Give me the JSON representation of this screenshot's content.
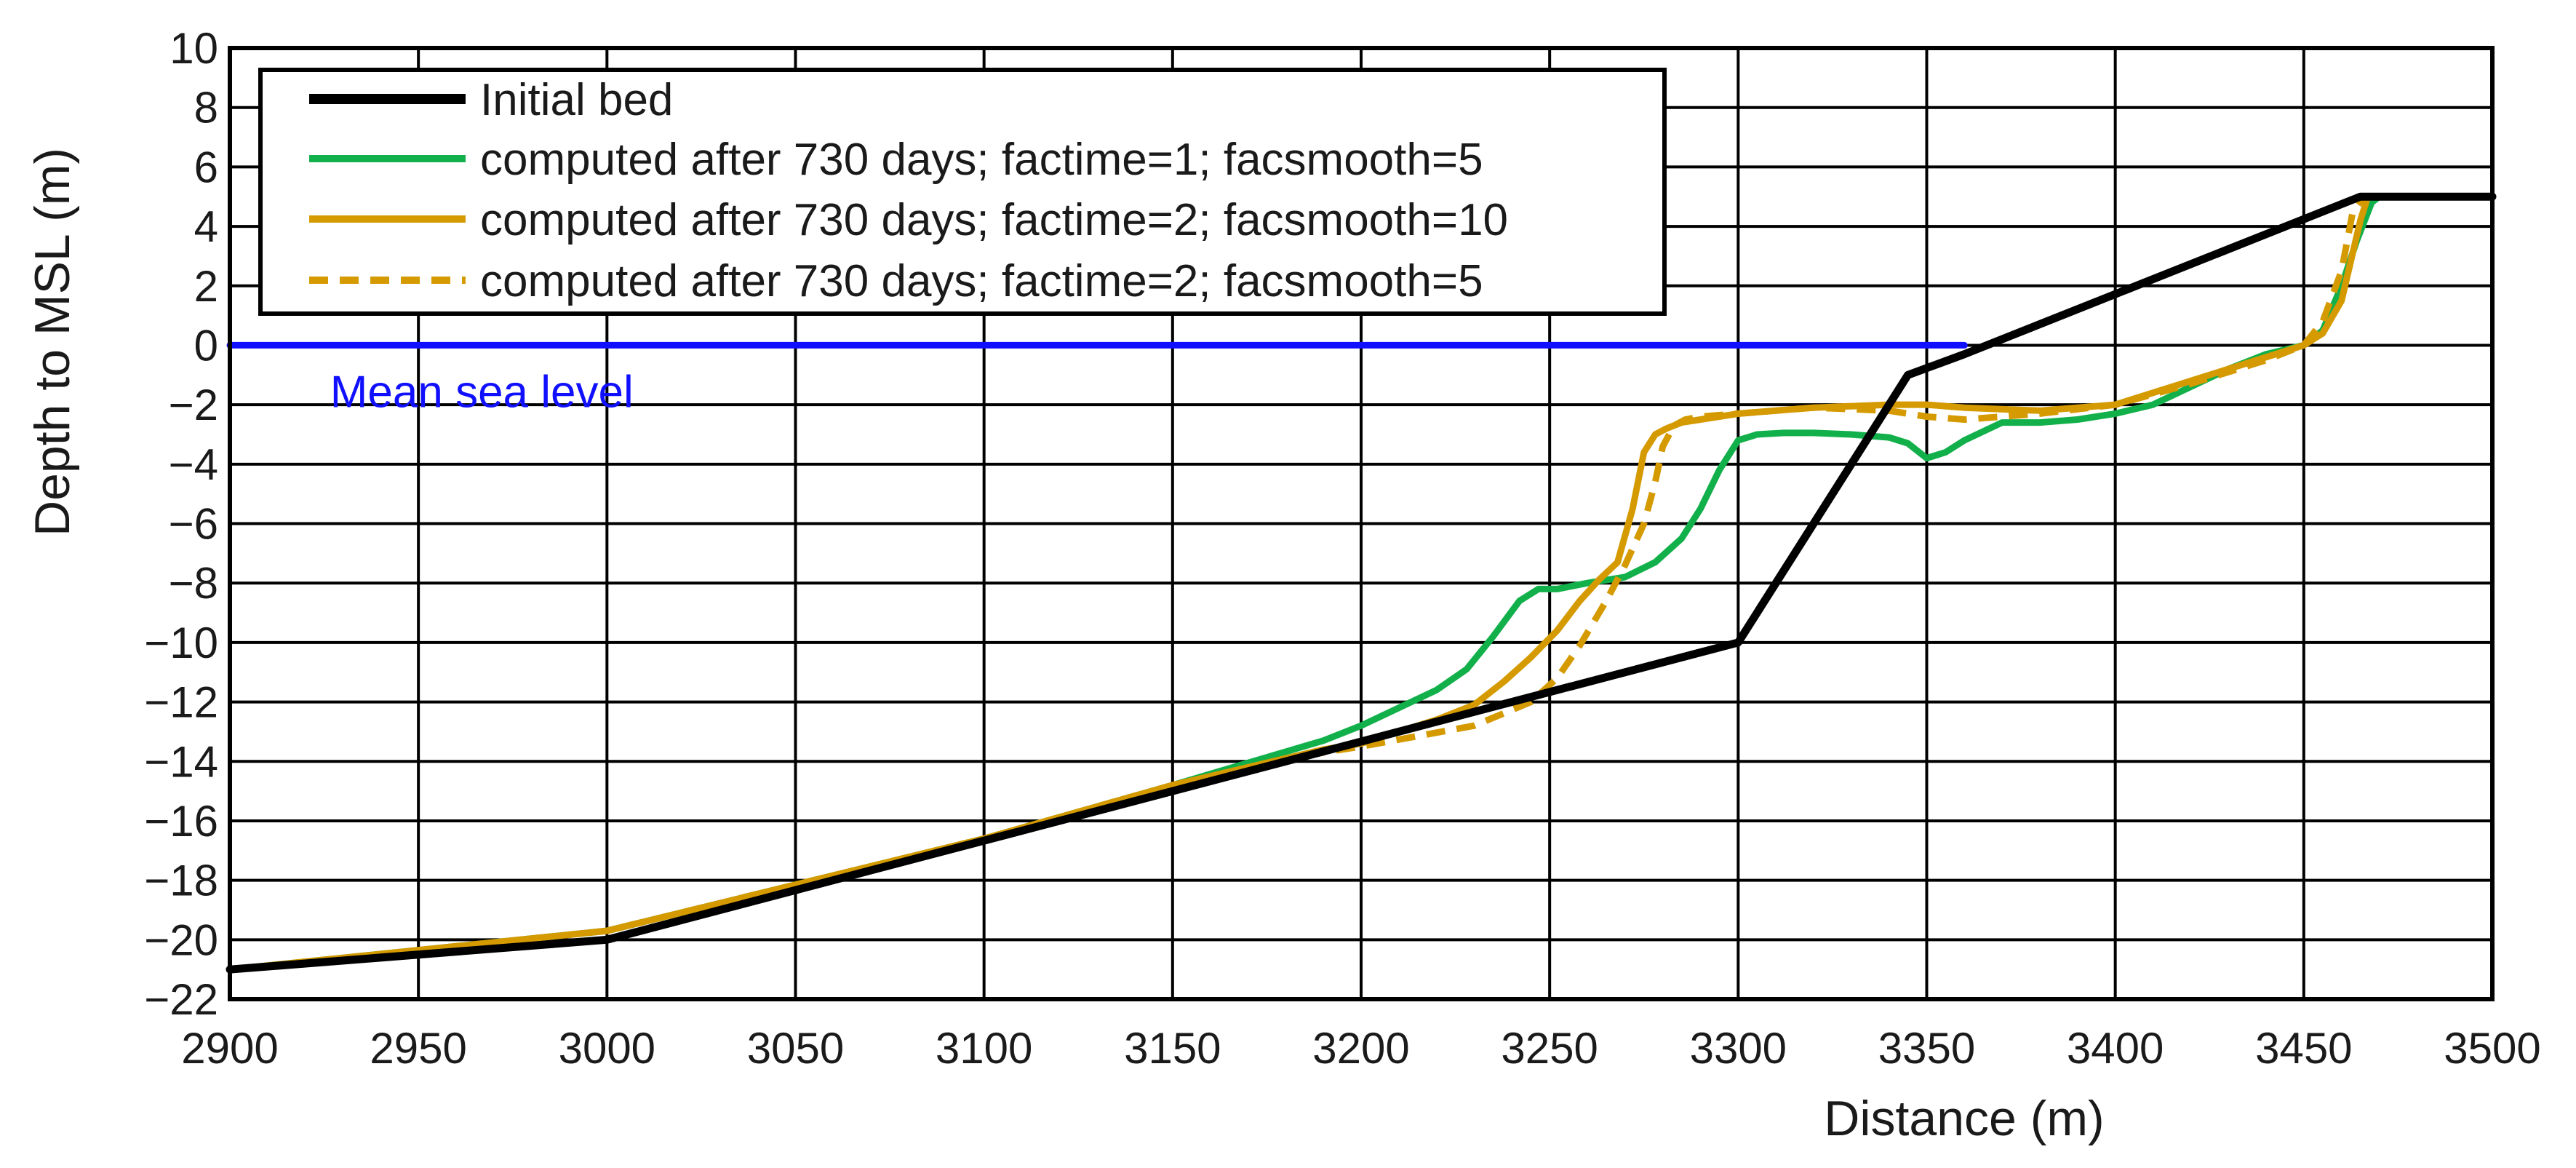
{
  "chart_data": {
    "type": "line",
    "title": "",
    "xlabel": "Distance (m)",
    "ylabel": "Depth to MSL (m)",
    "xlim": [
      2900,
      3500
    ],
    "ylim": [
      -22,
      10
    ],
    "x_ticks": [
      2900,
      2950,
      3000,
      3050,
      3100,
      3150,
      3200,
      3250,
      3300,
      3350,
      3400,
      3450,
      3500
    ],
    "x_tick_labels": [
      "2900",
      "2950",
      "3000",
      "3050",
      "3100",
      "3150",
      "3200",
      "3250",
      "3300",
      "3350",
      "3400",
      "3450",
      "3500"
    ],
    "y_ticks": [
      10,
      8,
      6,
      4,
      2,
      0,
      -2,
      -4,
      -6,
      -8,
      -10,
      -12,
      -14,
      -16,
      -18,
      -20,
      -22
    ],
    "y_tick_labels": [
      "10",
      "8",
      "6",
      "4",
      "2",
      "0",
      "−2",
      "−4",
      "−6",
      "−8",
      "−10",
      "−12",
      "−14",
      "−16",
      "−18",
      "−20",
      "−22"
    ],
    "grid": true,
    "legend_position": "top-left",
    "series": [
      {
        "name": "Initial bed",
        "color": "#000000",
        "dash": "solid",
        "x": [
          2900,
          3000,
          3300,
          3345,
          3360,
          3465,
          3500
        ],
        "y": [
          -21,
          -20,
          -10,
          -1,
          -0.3,
          5,
          5
        ]
      },
      {
        "name": "computed after 730 days; factime=1; facsmooth=5",
        "color": "#12b04a",
        "dash": "solid",
        "x": [
          2900,
          3000,
          3100,
          3150,
          3190,
          3200,
          3210,
          3220,
          3228,
          3235,
          3242,
          3247,
          3252,
          3260,
          3270,
          3278,
          3285,
          3290,
          3295,
          3300,
          3305,
          3312,
          3320,
          3330,
          3340,
          3345,
          3350,
          3355,
          3360,
          3370,
          3380,
          3390,
          3400,
          3410,
          3420,
          3430,
          3440,
          3450,
          3455,
          3460,
          3464,
          3468,
          3470,
          3500
        ],
        "y": [
          -21,
          -19.7,
          -16.6,
          -14.8,
          -13.3,
          -12.8,
          -12.2,
          -11.6,
          -10.9,
          -9.8,
          -8.6,
          -8.2,
          -8.2,
          -8,
          -7.8,
          -7.3,
          -6.5,
          -5.5,
          -4.2,
          -3.2,
          -3.0,
          -2.95,
          -2.95,
          -3.0,
          -3.1,
          -3.3,
          -3.8,
          -3.6,
          -3.2,
          -2.6,
          -2.6,
          -2.5,
          -2.3,
          -2.0,
          -1.4,
          -0.8,
          -0.3,
          0,
          0.5,
          2,
          3.5,
          4.8,
          5,
          5
        ]
      },
      {
        "name": "computed after 730 days; factime=2; facsmooth=10",
        "color": "#d49a00",
        "dash": "solid",
        "x": [
          2900,
          3000,
          3100,
          3150,
          3190,
          3200,
          3220,
          3230,
          3238,
          3245,
          3252,
          3258,
          3263,
          3268,
          3272,
          3275,
          3278,
          3281,
          3285,
          3290,
          3300,
          3320,
          3340,
          3350,
          3360,
          3380,
          3400,
          3420,
          3440,
          3450,
          3455,
          3460,
          3465,
          3467,
          3500
        ],
        "y": [
          -21,
          -19.7,
          -16.6,
          -14.8,
          -13.6,
          -13.4,
          -12.6,
          -12.1,
          -11.3,
          -10.5,
          -9.6,
          -8.6,
          -7.9,
          -7.3,
          -5.5,
          -3.6,
          -3.0,
          -2.8,
          -2.6,
          -2.5,
          -2.3,
          -2.1,
          -2.0,
          -2.0,
          -2.1,
          -2.2,
          -2.0,
          -1.2,
          -0.4,
          0,
          0.4,
          1.5,
          4.2,
          5,
          5
        ]
      },
      {
        "name": "computed after 730 days; factime=2; facsmooth=5",
        "color": "#d49a00",
        "dash": "dashed",
        "x": [
          2900,
          3000,
          3100,
          3150,
          3190,
          3200,
          3230,
          3245,
          3252,
          3258,
          3265,
          3270,
          3275,
          3278,
          3280,
          3283,
          3286,
          3290,
          3300,
          3320,
          3340,
          3350,
          3360,
          3380,
          3400,
          3420,
          3440,
          3450,
          3455,
          3460,
          3463,
          3466,
          3500
        ],
        "y": [
          -21,
          -19.7,
          -16.6,
          -14.8,
          -13.7,
          -13.5,
          -12.8,
          -12.0,
          -11.2,
          -10.1,
          -8.6,
          -7.4,
          -6.0,
          -4.6,
          -3.4,
          -2.7,
          -2.5,
          -2.4,
          -2.3,
          -2.1,
          -2.2,
          -2.4,
          -2.5,
          -2.3,
          -2.0,
          -1.3,
          -0.5,
          0,
          0.8,
          2.5,
          4.5,
          5,
          5
        ]
      },
      {
        "name": "Mean sea level",
        "color": "#1010ff",
        "dash": "solid",
        "x": [
          2900,
          3360
        ],
        "y": [
          0,
          0
        ]
      }
    ],
    "annotations": [
      {
        "text": "Mean sea level",
        "x": 2915,
        "y": -1.1,
        "color": "#1010ff"
      }
    ]
  }
}
